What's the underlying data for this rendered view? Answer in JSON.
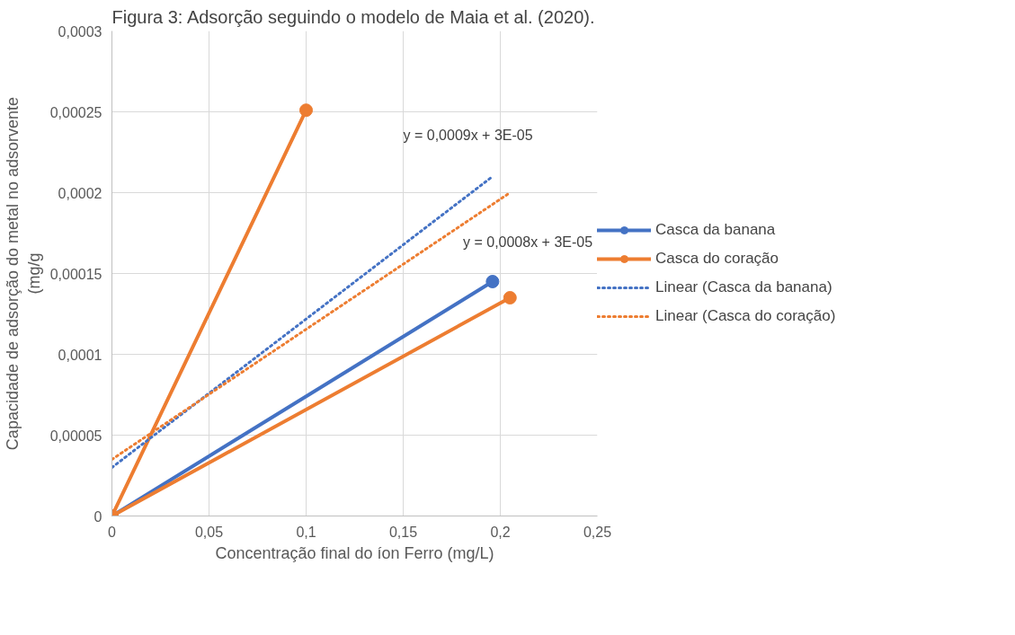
{
  "chart_data": {
    "type": "line",
    "title": "Figura 3: Adsorção seguindo o modelo de Maia et al. (2020).",
    "xlabel": "Concentração final do íon Ferro (mg/L)",
    "ylabel": "Capacidade de adsorção do metal no adsorvente\n(mg/g",
    "series": [
      {
        "name": "Casca da banana",
        "color": "#4472c4",
        "x": [
          0,
          0.196
        ],
        "values": [
          0,
          0.000145
        ],
        "marker": "circle",
        "line_style": "solid"
      },
      {
        "name": "Casca do coração",
        "color": "#ed7d31",
        "x": [
          0.1,
          0,
          0.205
        ],
        "values": [
          0.000251,
          0,
          0.000135
        ],
        "marker": "circle",
        "line_style": "solid"
      },
      {
        "name": "Linear (Casca da banana)",
        "color": "#4472c4",
        "x": [
          0,
          0.196
        ],
        "values": [
          3e-05,
          0.00021
        ],
        "marker": "none",
        "line_style": "dotted"
      },
      {
        "name": "Linear (Casca do coração)",
        "color": "#ed7d31",
        "x": [
          0,
          0.205
        ],
        "values": [
          3.5e-05,
          0.0002
        ],
        "marker": "none",
        "line_style": "dotted"
      }
    ],
    "annotations": [
      "y = 0,0009x + 3E-05",
      "y = 0,0008x + 3E-05"
    ],
    "xlim": [
      0,
      0.25
    ],
    "ylim": [
      0,
      0.0003
    ],
    "xticks": [
      0,
      {
        "value": 0.05,
        "label": "0,05"
      },
      {
        "value": 0.1,
        "label": "0,1"
      },
      {
        "value": 0.15,
        "label": "0,15"
      },
      {
        "value": 0.2,
        "label": "0,2"
      },
      {
        "value": 0.25,
        "label": "0,25"
      }
    ],
    "yticks": [
      0,
      {
        "value": 5e-05,
        "label": "0,00005"
      },
      {
        "value": 0.0001,
        "label": "0,0001"
      },
      {
        "value": 0.00015,
        "label": "0,00015"
      },
      {
        "value": 0.0002,
        "label": "0,0002"
      },
      {
        "value": 0.00025,
        "label": "0,00025"
      },
      {
        "value": 0.0003,
        "label": "0,0003"
      }
    ],
    "grid": true,
    "legend": "right"
  }
}
